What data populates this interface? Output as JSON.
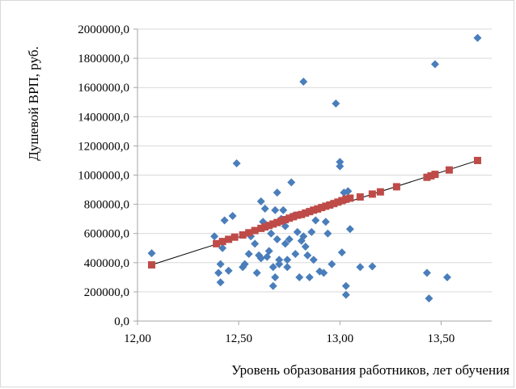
{
  "chart_data": {
    "type": "scatter",
    "xlabel": "Уровень образования работников, лет обучения",
    "ylabel": "Душевой ВРП, руб.",
    "xlim": [
      12.0,
      13.75
    ],
    "ylim": [
      0,
      2000000
    ],
    "x_ticks": [
      {
        "value": 12.0,
        "label": "12,00"
      },
      {
        "value": 12.5,
        "label": "12,50"
      },
      {
        "value": 13.0,
        "label": "13,00"
      },
      {
        "value": 13.5,
        "label": "13,50"
      }
    ],
    "y_ticks": [
      {
        "value": 0,
        "label": "0,0"
      },
      {
        "value": 200000,
        "label": "200000,0"
      },
      {
        "value": 400000,
        "label": "400000,0"
      },
      {
        "value": 600000,
        "label": "600000,0"
      },
      {
        "value": 800000,
        "label": "800000,0"
      },
      {
        "value": 1000000,
        "label": "1000000,0"
      },
      {
        "value": 1200000,
        "label": "1200000,0"
      },
      {
        "value": 1400000,
        "label": "1400000,0"
      },
      {
        "value": 1600000,
        "label": "1600000,0"
      },
      {
        "value": 1800000,
        "label": "1800000,0"
      },
      {
        "value": 2000000,
        "label": "2000000,0"
      }
    ],
    "grid": {
      "horizontal": true,
      "vertical": false
    },
    "colors": {
      "actual": "#4a7ebb",
      "predicted": "#be4b48",
      "trend": "#000000",
      "grid": "#d9d9d9",
      "axis": "#a6a6a6"
    },
    "series": [
      {
        "marker": "diamond",
        "points": [
          [
            12.07,
            465000
          ],
          [
            12.38,
            580000
          ],
          [
            12.4,
            330000
          ],
          [
            12.41,
            390000
          ],
          [
            12.41,
            265000
          ],
          [
            12.42,
            500000
          ],
          [
            12.43,
            690000
          ],
          [
            12.45,
            345000
          ],
          [
            12.47,
            720000
          ],
          [
            12.49,
            1080000
          ],
          [
            12.52,
            370000
          ],
          [
            12.53,
            390000
          ],
          [
            12.55,
            460000
          ],
          [
            12.56,
            580000
          ],
          [
            12.58,
            530000
          ],
          [
            12.59,
            330000
          ],
          [
            12.6,
            450000
          ],
          [
            12.61,
            430000
          ],
          [
            12.61,
            820000
          ],
          [
            12.62,
            680000
          ],
          [
            12.63,
            770000
          ],
          [
            12.64,
            440000
          ],
          [
            12.65,
            480000
          ],
          [
            12.66,
            600000
          ],
          [
            12.67,
            370000
          ],
          [
            12.67,
            240000
          ],
          [
            12.68,
            760000
          ],
          [
            12.68,
            300000
          ],
          [
            12.69,
            560000
          ],
          [
            12.69,
            880000
          ],
          [
            12.7,
            420000
          ],
          [
            12.7,
            390000
          ],
          [
            12.71,
            700000
          ],
          [
            12.72,
            760000
          ],
          [
            12.73,
            530000
          ],
          [
            12.73,
            650000
          ],
          [
            12.74,
            420000
          ],
          [
            12.74,
            370000
          ],
          [
            12.75,
            560000
          ],
          [
            12.76,
            950000
          ],
          [
            12.77,
            720000
          ],
          [
            12.78,
            460000
          ],
          [
            12.79,
            610000
          ],
          [
            12.8,
            300000
          ],
          [
            12.81,
            550000
          ],
          [
            12.82,
            1640000
          ],
          [
            12.82,
            580000
          ],
          [
            12.83,
            510000
          ],
          [
            12.84,
            450000
          ],
          [
            12.85,
            300000
          ],
          [
            12.86,
            610000
          ],
          [
            12.87,
            420000
          ],
          [
            12.88,
            690000
          ],
          [
            12.9,
            340000
          ],
          [
            12.92,
            330000
          ],
          [
            12.93,
            680000
          ],
          [
            12.94,
            600000
          ],
          [
            12.96,
            390000
          ],
          [
            12.98,
            1490000
          ],
          [
            13.0,
            1090000
          ],
          [
            13.0,
            1060000
          ],
          [
            13.01,
            470000
          ],
          [
            13.02,
            880000
          ],
          [
            13.03,
            240000
          ],
          [
            13.03,
            180000
          ],
          [
            13.04,
            890000
          ],
          [
            13.05,
            630000
          ],
          [
            13.1,
            370000
          ],
          [
            13.16,
            375000
          ],
          [
            13.43,
            330000
          ],
          [
            13.44,
            155000
          ],
          [
            13.47,
            1760000
          ],
          [
            13.53,
            300000
          ],
          [
            13.68,
            1940000
          ]
        ]
      },
      {
        "marker": "square",
        "points": [
          [
            12.07,
            385000
          ],
          [
            12.39,
            530000
          ],
          [
            12.42,
            545000
          ],
          [
            12.45,
            560000
          ],
          [
            12.48,
            575000
          ],
          [
            12.52,
            590000
          ],
          [
            12.55,
            605000
          ],
          [
            12.58,
            620000
          ],
          [
            12.61,
            635000
          ],
          [
            12.63,
            645000
          ],
          [
            12.65,
            655000
          ],
          [
            12.67,
            665000
          ],
          [
            12.69,
            675000
          ],
          [
            12.71,
            685000
          ],
          [
            12.73,
            695000
          ],
          [
            12.75,
            705000
          ],
          [
            12.77,
            715000
          ],
          [
            12.79,
            725000
          ],
          [
            12.81,
            730000
          ],
          [
            12.83,
            740000
          ],
          [
            12.85,
            750000
          ],
          [
            12.87,
            760000
          ],
          [
            12.89,
            768000
          ],
          [
            12.91,
            778000
          ],
          [
            12.93,
            787000
          ],
          [
            12.95,
            795000
          ],
          [
            12.97,
            805000
          ],
          [
            12.99,
            815000
          ],
          [
            13.01,
            825000
          ],
          [
            13.03,
            835000
          ],
          [
            13.05,
            842000
          ],
          [
            13.1,
            850000
          ],
          [
            13.16,
            870000
          ],
          [
            13.2,
            885000
          ],
          [
            13.28,
            920000
          ],
          [
            13.43,
            985000
          ],
          [
            13.45,
            995000
          ],
          [
            13.47,
            1005000
          ],
          [
            13.54,
            1035000
          ],
          [
            13.68,
            1100000
          ]
        ]
      }
    ],
    "trendline": {
      "x": [
        12.07,
        13.68
      ],
      "y": [
        385000,
        1100000
      ]
    }
  }
}
